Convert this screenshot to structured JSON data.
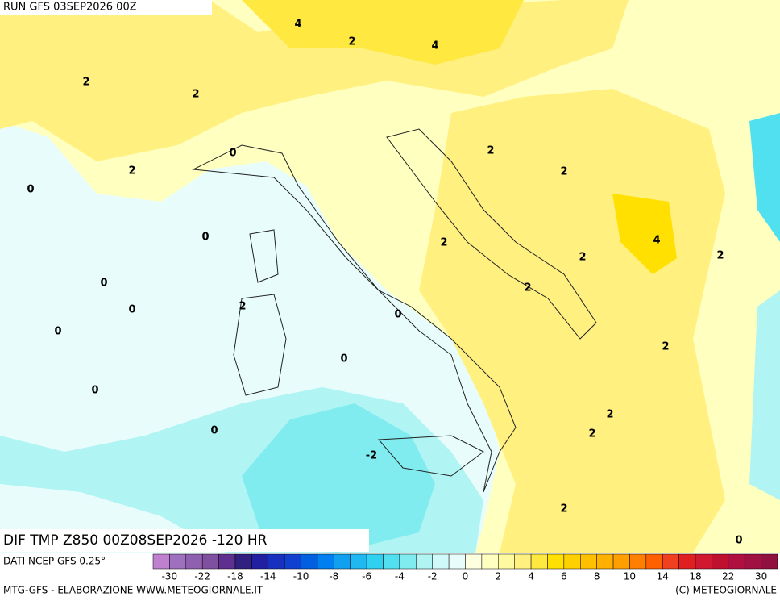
{
  "header": {
    "run": "RUN GFS 03SEP2026 00Z"
  },
  "footer": {
    "title": "DIF TMP Z850 00Z08SEP2026 -120 HR",
    "source": "DATI NCEP GFS 0.25°",
    "credit": "MTG-GFS - ELABORAZIONE WWW.METEOGIORNALE.IT",
    "copyright": "(C) METEOGIORNALE"
  },
  "colorbar": {
    "labels": [
      "-30",
      "-22",
      "-18",
      "-14",
      "-10",
      "-8",
      "-6",
      "-4",
      "-2",
      "0",
      "2",
      "4",
      "6",
      "8",
      "10",
      "14",
      "18",
      "22",
      "30"
    ],
    "colors": [
      "#c080d0",
      "#a070c0",
      "#9060b0",
      "#8050a0",
      "#603090",
      "#302080",
      "#2020a0",
      "#1830c0",
      "#1040d0",
      "#0060e0",
      "#0080f0",
      "#10a0f0",
      "#20b8f0",
      "#30d0f0",
      "#50e0f0",
      "#80ecf0",
      "#b0f4f4",
      "#d0fafa",
      "#e8fcfc",
      "#ffffe0",
      "#ffffc0",
      "#fffaa0",
      "#fff080",
      "#ffe840",
      "#ffe000",
      "#ffd000",
      "#ffc000",
      "#ffb000",
      "#ffa000",
      "#ff8000",
      "#ff6000",
      "#f04020",
      "#e02020",
      "#d01830",
      "#c01030",
      "#b01040",
      "#a01040",
      "#901040"
    ]
  },
  "map": {
    "contour_labels": [
      "4",
      "2",
      "4",
      "2",
      "2",
      "0",
      "2",
      "2",
      "2",
      "0",
      "0",
      "2",
      "4",
      "2",
      "2",
      "0",
      "2",
      "0",
      "2",
      "0",
      "0",
      "0",
      "2",
      "0",
      "2",
      "0",
      "2",
      "-2",
      "2",
      "0"
    ]
  }
}
